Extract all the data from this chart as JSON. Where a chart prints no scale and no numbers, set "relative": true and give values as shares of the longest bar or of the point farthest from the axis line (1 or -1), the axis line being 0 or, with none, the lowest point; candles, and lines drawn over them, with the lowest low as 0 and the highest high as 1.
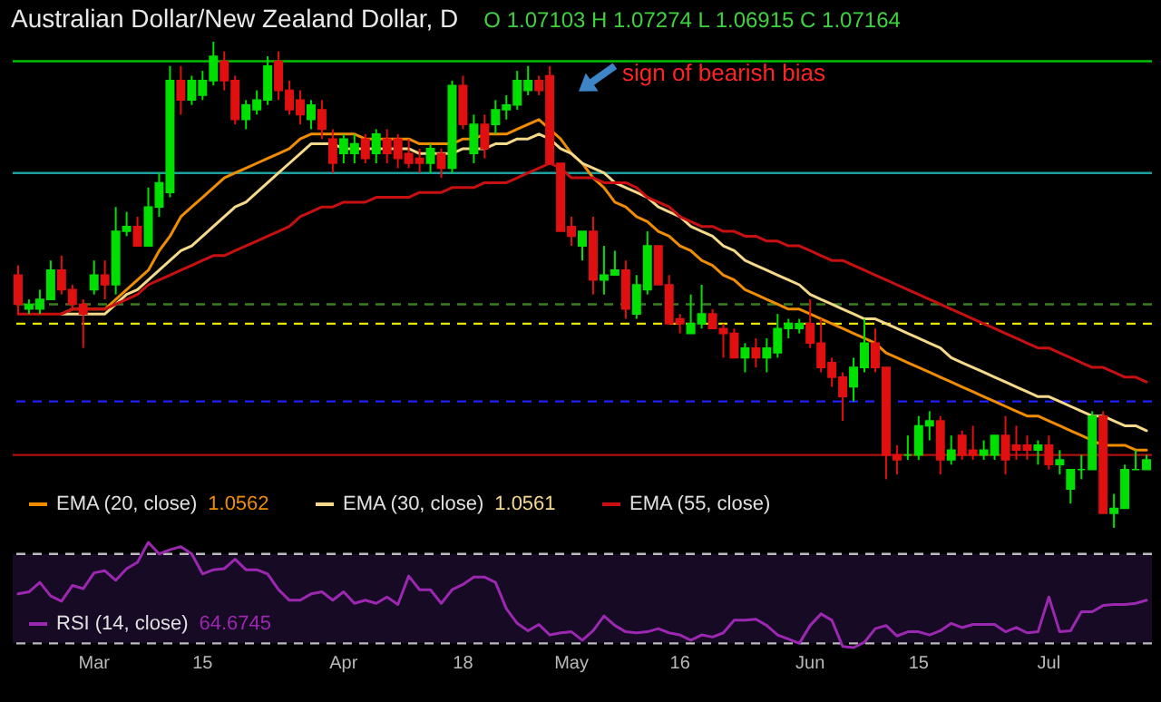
{
  "chart_data": [
    {
      "type": "candlestick",
      "title": "Australian Dollar/New Zealand Dollar, D",
      "subtitle": "O 1.07103 H 1.07274 L 1.06915 C 1.07164",
      "relative": true,
      "tick_labels": false,
      "legend": "bottom left",
      "categories": [
        null,
        null,
        null,
        null,
        null,
        null,
        null,
        null,
        null,
        null,
        null,
        null,
        null,
        null,
        null,
        null,
        null,
        null,
        null,
        null,
        null,
        null,
        null,
        null,
        null,
        null,
        null,
        null,
        null,
        null,
        null,
        null,
        null,
        null,
        null,
        null,
        null,
        null,
        null,
        null,
        null,
        null,
        null,
        null,
        null,
        null,
        null,
        null,
        null,
        null,
        null,
        null,
        null,
        null,
        null,
        null,
        null,
        null,
        null,
        null,
        null,
        null,
        null,
        null,
        null,
        null,
        null,
        null,
        null,
        null,
        null,
        null,
        null,
        null,
        null,
        null,
        null,
        null,
        null,
        null,
        null,
        null,
        null,
        null,
        null,
        null,
        null,
        null,
        null,
        null,
        null,
        null,
        null,
        null,
        null,
        null,
        null,
        null,
        null,
        null,
        null,
        null,
        null,
        null,
        null
      ],
      "series": [
        {
          "type": "line",
          "name": "EMA (20, close)",
          "color": "#f08c00",
          "values": [
            null,
            null,
            null,
            null,
            0.44,
            0.45,
            0.45,
            0.45,
            0.45,
            0.47,
            0.49,
            0.51,
            0.53,
            0.57,
            0.6,
            0.64,
            0.66,
            0.68,
            0.7,
            0.72,
            0.73,
            0.74,
            0.75,
            0.76,
            0.77,
            0.78,
            0.8,
            0.81,
            0.81,
            0.81,
            0.81,
            0.81,
            0.8,
            0.8,
            0.8,
            0.8,
            0.8,
            0.79,
            0.79,
            0.79,
            0.79,
            0.8,
            0.8,
            0.81,
            0.81,
            0.81,
            0.82,
            0.83,
            0.84,
            0.82,
            0.8,
            0.77,
            0.75,
            0.72,
            0.7,
            0.67,
            0.66,
            0.64,
            0.63,
            0.61,
            0.6,
            0.58,
            0.57,
            0.55,
            0.54,
            0.52,
            0.51,
            0.49,
            0.48,
            0.47,
            0.46,
            0.45,
            0.45,
            0.44,
            0.43,
            0.42,
            0.41,
            0.4,
            0.39,
            0.38,
            0.36,
            0.35,
            0.34,
            0.33,
            0.32,
            0.31,
            0.3,
            0.29,
            0.28,
            0.27,
            0.26,
            0.25,
            0.24,
            0.23,
            0.23,
            0.22,
            0.21,
            0.2,
            0.19,
            0.18,
            0.17,
            0.17,
            0.17,
            0.16,
            0.16
          ]
        },
        {
          "type": "line",
          "name": "EMA (30, close)",
          "color": "#f5d98b",
          "values": [
            null,
            null,
            null,
            null,
            0.44,
            0.44,
            0.44,
            0.44,
            0.44,
            0.46,
            0.48,
            0.49,
            0.51,
            0.53,
            0.55,
            0.57,
            0.58,
            0.6,
            0.62,
            0.64,
            0.66,
            0.67,
            0.69,
            0.71,
            0.73,
            0.75,
            0.77,
            0.79,
            0.79,
            0.79,
            0.78,
            0.78,
            0.78,
            0.78,
            0.78,
            0.78,
            0.78,
            0.77,
            0.77,
            0.77,
            0.77,
            0.78,
            0.78,
            0.78,
            0.79,
            0.79,
            0.8,
            0.8,
            0.81,
            0.8,
            0.78,
            0.77,
            0.75,
            0.74,
            0.73,
            0.71,
            0.7,
            0.69,
            0.68,
            0.66,
            0.65,
            0.64,
            0.62,
            0.61,
            0.6,
            0.58,
            0.57,
            0.55,
            0.54,
            0.53,
            0.52,
            0.51,
            0.5,
            0.48,
            0.47,
            0.46,
            0.45,
            0.44,
            0.43,
            0.43,
            0.42,
            0.41,
            0.4,
            0.39,
            0.38,
            0.37,
            0.35,
            0.34,
            0.33,
            0.32,
            0.31,
            0.3,
            0.29,
            0.28,
            0.27,
            0.27,
            0.26,
            0.25,
            0.24,
            0.23,
            0.23,
            0.22,
            0.21,
            0.21,
            0.2
          ]
        },
        {
          "type": "line",
          "name": "EMA (55, close)",
          "color": "#c81010",
          "values": [
            0.44,
            0.44,
            0.44,
            0.44,
            0.44,
            0.45,
            0.45,
            0.45,
            0.45,
            0.46,
            0.47,
            0.48,
            0.5,
            0.51,
            0.52,
            0.53,
            0.54,
            0.55,
            0.56,
            0.56,
            0.57,
            0.58,
            0.59,
            0.6,
            0.61,
            0.62,
            0.64,
            0.65,
            0.66,
            0.66,
            0.67,
            0.67,
            0.67,
            0.68,
            0.68,
            0.68,
            0.68,
            0.69,
            0.69,
            0.69,
            0.7,
            0.7,
            0.7,
            0.71,
            0.71,
            0.71,
            0.72,
            0.73,
            0.74,
            0.75,
            0.74,
            0.72,
            0.72,
            0.72,
            0.71,
            0.71,
            0.71,
            0.7,
            0.68,
            0.67,
            0.66,
            0.64,
            0.63,
            0.62,
            0.62,
            0.61,
            0.61,
            0.6,
            0.6,
            0.59,
            0.59,
            0.58,
            0.58,
            0.57,
            0.56,
            0.55,
            0.55,
            0.54,
            0.53,
            0.52,
            0.51,
            0.5,
            0.49,
            0.48,
            0.47,
            0.46,
            0.45,
            0.44,
            0.43,
            0.42,
            0.41,
            0.4,
            0.39,
            0.38,
            0.37,
            0.37,
            0.36,
            0.35,
            0.34,
            0.33,
            0.33,
            0.32,
            0.31,
            0.31,
            0.3
          ]
        },
        {
          "ohlc": [
            [
              0.52,
              0.54,
              0.44,
              0.46
            ],
            [
              0.45,
              0.47,
              0.44,
              0.46
            ],
            [
              0.45,
              0.49,
              0.44,
              0.47
            ],
            [
              0.47,
              0.55,
              0.47,
              0.53
            ],
            [
              0.53,
              0.56,
              0.48,
              0.49
            ],
            [
              0.49,
              0.5,
              0.45,
              0.46
            ],
            [
              0.46,
              0.47,
              0.37,
              0.44
            ],
            [
              0.49,
              0.55,
              0.48,
              0.52
            ],
            [
              0.52,
              0.55,
              0.47,
              0.5
            ],
            [
              0.5,
              0.66,
              0.48,
              0.61
            ],
            [
              0.61,
              0.65,
              0.6,
              0.62
            ],
            [
              0.62,
              0.64,
              0.58,
              0.58
            ],
            [
              0.58,
              0.7,
              0.58,
              0.66
            ],
            [
              0.66,
              0.73,
              0.64,
              0.71
            ],
            [
              0.69,
              0.95,
              0.68,
              0.92
            ],
            [
              0.92,
              0.95,
              0.85,
              0.88
            ],
            [
              0.88,
              0.93,
              0.87,
              0.92
            ],
            [
              0.89,
              0.94,
              0.88,
              0.92
            ],
            [
              0.92,
              1.0,
              0.91,
              0.97
            ],
            [
              0.96,
              0.98,
              0.9,
              0.92
            ],
            [
              0.92,
              0.93,
              0.83,
              0.84
            ],
            [
              0.84,
              0.88,
              0.82,
              0.87
            ],
            [
              0.86,
              0.9,
              0.85,
              0.88
            ],
            [
              0.88,
              0.97,
              0.87,
              0.95
            ],
            [
              0.96,
              0.98,
              0.88,
              0.9
            ],
            [
              0.9,
              0.92,
              0.85,
              0.86
            ],
            [
              0.88,
              0.9,
              0.83,
              0.85
            ],
            [
              0.84,
              0.88,
              0.82,
              0.87
            ],
            [
              0.86,
              0.88,
              0.8,
              0.82
            ],
            [
              0.8,
              0.82,
              0.73,
              0.75
            ],
            [
              0.77,
              0.81,
              0.75,
              0.8
            ],
            [
              0.77,
              0.81,
              0.75,
              0.79
            ],
            [
              0.8,
              0.81,
              0.75,
              0.76
            ],
            [
              0.77,
              0.82,
              0.75,
              0.81
            ],
            [
              0.8,
              0.82,
              0.75,
              0.77
            ],
            [
              0.8,
              0.81,
              0.74,
              0.76
            ],
            [
              0.77,
              0.8,
              0.74,
              0.75
            ],
            [
              0.76,
              0.78,
              0.73,
              0.75
            ],
            [
              0.75,
              0.79,
              0.73,
              0.78
            ],
            [
              0.77,
              0.78,
              0.72,
              0.74
            ],
            [
              0.74,
              0.92,
              0.73,
              0.91
            ],
            [
              0.91,
              0.93,
              0.82,
              0.83
            ],
            [
              0.77,
              0.85,
              0.75,
              0.83
            ],
            [
              0.83,
              0.85,
              0.76,
              0.78
            ],
            [
              0.83,
              0.88,
              0.81,
              0.86
            ],
            [
              0.86,
              0.89,
              0.84,
              0.87
            ],
            [
              0.87,
              0.94,
              0.86,
              0.92
            ],
            [
              0.9,
              0.95,
              0.89,
              0.92
            ],
            [
              0.92,
              0.93,
              0.89,
              0.9
            ],
            [
              0.93,
              0.95,
              0.75,
              0.75
            ],
            [
              0.75,
              0.75,
              0.61,
              0.61
            ],
            [
              0.62,
              0.64,
              0.58,
              0.6
            ],
            [
              0.58,
              0.61,
              0.55,
              0.61
            ],
            [
              0.61,
              0.64,
              0.48,
              0.51
            ],
            [
              0.51,
              0.58,
              0.48,
              0.52
            ],
            [
              0.52,
              0.57,
              0.52,
              0.53
            ],
            [
              0.53,
              0.55,
              0.43,
              0.45
            ],
            [
              0.44,
              0.52,
              0.43,
              0.5
            ],
            [
              0.49,
              0.61,
              0.48,
              0.58
            ],
            [
              0.58,
              0.58,
              0.5,
              0.5
            ],
            [
              0.5,
              0.52,
              0.42,
              0.42
            ],
            [
              0.43,
              0.44,
              0.4,
              0.42
            ],
            [
              0.4,
              0.48,
              0.4,
              0.42
            ],
            [
              0.42,
              0.5,
              0.41,
              0.44
            ],
            [
              0.44,
              0.45,
              0.41,
              0.41
            ],
            [
              0.41,
              0.42,
              0.35,
              0.4
            ],
            [
              0.4,
              0.41,
              0.35,
              0.35
            ],
            [
              0.35,
              0.38,
              0.32,
              0.37
            ],
            [
              0.37,
              0.39,
              0.33,
              0.35
            ],
            [
              0.35,
              0.39,
              0.32,
              0.37
            ],
            [
              0.36,
              0.44,
              0.35,
              0.41
            ],
            [
              0.41,
              0.43,
              0.39,
              0.42
            ],
            [
              0.41,
              0.43,
              0.4,
              0.42
            ],
            [
              0.42,
              0.47,
              0.37,
              0.38
            ],
            [
              0.38,
              0.43,
              0.32,
              0.33
            ],
            [
              0.34,
              0.35,
              0.29,
              0.31
            ],
            [
              0.31,
              0.32,
              0.22,
              0.27
            ],
            [
              0.29,
              0.35,
              0.26,
              0.33
            ],
            [
              0.33,
              0.43,
              0.32,
              0.38
            ],
            [
              0.38,
              0.41,
              0.32,
              0.33
            ],
            [
              0.33,
              0.33,
              0.1,
              0.15
            ],
            [
              0.15,
              0.17,
              0.11,
              0.14
            ],
            [
              0.15,
              0.19,
              0.14,
              0.15
            ],
            [
              0.15,
              0.23,
              0.14,
              0.21
            ],
            [
              0.21,
              0.24,
              0.18,
              0.22
            ],
            [
              0.22,
              0.23,
              0.11,
              0.14
            ],
            [
              0.14,
              0.19,
              0.13,
              0.16
            ],
            [
              0.19,
              0.2,
              0.14,
              0.15
            ],
            [
              0.16,
              0.21,
              0.14,
              0.15
            ],
            [
              0.15,
              0.18,
              0.14,
              0.16
            ],
            [
              0.15,
              0.19,
              0.14,
              0.19
            ],
            [
              0.19,
              0.23,
              0.11,
              0.14
            ],
            [
              0.17,
              0.21,
              0.14,
              0.16
            ],
            [
              0.17,
              0.19,
              0.14,
              0.16
            ],
            [
              0.16,
              0.18,
              0.13,
              0.17
            ],
            [
              0.17,
              0.19,
              0.12,
              0.13
            ],
            [
              0.13,
              0.16,
              0.11,
              0.14
            ],
            [
              0.08,
              0.12,
              0.05,
              0.12
            ],
            [
              0.12,
              0.15,
              0.1,
              0.12
            ],
            [
              0.12,
              0.24,
              0.12,
              0.23
            ],
            [
              0.23,
              0.24,
              0.03,
              0.03
            ],
            [
              0.03,
              0.07,
              0,
              0.04
            ],
            [
              0.04,
              0.13,
              0.04,
              0.12
            ],
            [
              0.12,
              0.16,
              0.12,
              0.12
            ],
            [
              0.12,
              0.15,
              0.12,
              0.14
            ]
          ],
          "colors": [
            "#e01010",
            "#00e000",
            "#00e000",
            "#00e000",
            "#e01010",
            "#e01010",
            "#e01010",
            "#00e000",
            "#e01010",
            "#00e000",
            "#00e000",
            "#e01010",
            "#00e000",
            "#00e000",
            "#00e000",
            "#e01010",
            "#00e000",
            "#00e000",
            "#00e000",
            "#e01010",
            "#e01010",
            "#00e000",
            "#00e000",
            "#00e000",
            "#e01010",
            "#e01010",
            "#e01010",
            "#00e000",
            "#e01010",
            "#e01010",
            "#00e000",
            "#00e000",
            "#e01010",
            "#00e000",
            "#e01010",
            "#e01010",
            "#e01010",
            "#e01010",
            "#00e000",
            "#e01010",
            "#00e000",
            "#e01010",
            "#00e000",
            "#e01010",
            "#00e000",
            "#00e000",
            "#00e000",
            "#00e000",
            "#e01010",
            "#e01010",
            "#e01010",
            "#e01010",
            "#00e000",
            "#e01010",
            "#00e000",
            "#00e000",
            "#e01010",
            "#00e000",
            "#00e000",
            "#e01010",
            "#e01010",
            "#e01010",
            "#00e000",
            "#00e000",
            "#e01010",
            "#e01010",
            "#e01010",
            "#00e000",
            "#e01010",
            "#00e000",
            "#00e000",
            "#00e000",
            "#00e000",
            "#e01010",
            "#e01010",
            "#e01010",
            "#e01010",
            "#00e000",
            "#00e000",
            "#e01010",
            "#e01010",
            "#e01010",
            "#00e000",
            "#00e000",
            "#00e000",
            "#e01010",
            "#00e000",
            "#e01010",
            "#e01010",
            "#00e000",
            "#00e000",
            "#e01010",
            "#e01010",
            "#e01010",
            "#00e000",
            "#e01010",
            "#00e000",
            "#00e000",
            "#00e000",
            "#00e000",
            "#e01010",
            "#00e000",
            "#00e000",
            "#00e000",
            "#00e000"
          ]
        }
      ],
      "ref_lines": [
        {
          "axis": "y",
          "value": 0.96,
          "color": "#00c000",
          "line_style": "solid"
        },
        {
          "axis": "y",
          "value": 0.73,
          "color": "#1f9e9e",
          "line_style": "solid"
        },
        {
          "axis": "y",
          "value": 0.46,
          "color": "#3a7d1e",
          "line_style": "dashed"
        },
        {
          "axis": "y",
          "value": 0.42,
          "color": "#e6e600",
          "line_style": "dashed"
        },
        {
          "axis": "y",
          "value": 0.26,
          "color": "#2020ff",
          "line_style": "dashed"
        },
        {
          "axis": "y",
          "value": 0.15,
          "color": "#b01010",
          "line_style": "solid"
        }
      ],
      "annotations": [
        {
          "text": "sign of bearish bias",
          "y": 0.95
        },
        "1.0562",
        "1.0561"
      ]
    },
    {
      "type": "line",
      "relative": true,
      "tick_labels": "x",
      "legend": "bottom left",
      "categories": [
        null,
        null,
        null,
        null,
        null,
        null,
        null,
        "Mar",
        null,
        null,
        null,
        null,
        null,
        null,
        null,
        null,
        null,
        "15",
        null,
        null,
        null,
        null,
        null,
        null,
        null,
        null,
        null,
        null,
        null,
        null,
        "Apr",
        null,
        null,
        null,
        null,
        null,
        null,
        null,
        null,
        null,
        null,
        "18",
        null,
        null,
        null,
        null,
        null,
        null,
        null,
        null,
        null,
        "May",
        null,
        null,
        null,
        null,
        null,
        null,
        null,
        null,
        null,
        "16",
        null,
        null,
        null,
        null,
        null,
        null,
        null,
        null,
        null,
        null,
        null,
        "Jun",
        null,
        null,
        null,
        null,
        null,
        null,
        null,
        null,
        null,
        "15",
        null,
        null,
        null,
        null,
        null,
        null,
        null,
        null,
        null,
        null,
        null,
        "Jul",
        null,
        null,
        null,
        null,
        null,
        null,
        null,
        null,
        null
      ],
      "series": [
        {
          "name": "RSI (14, close)",
          "color": "#9c27b0",
          "values": [
            0.51,
            0.53,
            0.62,
            0.49,
            0.44,
            0.59,
            0.56,
            0.71,
            0.73,
            0.64,
            0.75,
            0.81,
            1.0,
            0.89,
            0.93,
            0.96,
            0.89,
            0.7,
            0.74,
            0.75,
            0.84,
            0.74,
            0.74,
            0.7,
            0.55,
            0.45,
            0.45,
            0.51,
            0.53,
            0.45,
            0.53,
            0.42,
            0.45,
            0.42,
            0.48,
            0.41,
            0.68,
            0.55,
            0.55,
            0.42,
            0.55,
            0.6,
            0.67,
            0.67,
            0.62,
            0.37,
            0.23,
            0.16,
            0.22,
            0.12,
            0.14,
            0.15,
            0.07,
            0.16,
            0.3,
            0.21,
            0.15,
            0.14,
            0.15,
            0.18,
            0.14,
            0.12,
            0.07,
            0.12,
            0.1,
            0.14,
            0.26,
            0.26,
            0.27,
            0.21,
            0.12,
            0.08,
            0.04,
            0.21,
            0.32,
            0.26,
            0.01,
            0,
            0.05,
            0.18,
            0.21,
            0.11,
            0.15,
            0.15,
            0.12,
            0.16,
            0.23,
            0.19,
            0.22,
            0.22,
            0.22,
            0.15,
            0.19,
            0.14,
            0.15,
            0.48,
            0.15,
            0.16,
            0.34,
            0.34,
            0.4,
            0.41,
            0.41,
            0.42,
            0.45
          ]
        }
      ],
      "ref_lines": [
        {
          "axis": "y",
          "value": 0.89,
          "color": "#bbbbbb",
          "line_style": "dashed"
        },
        {
          "axis": "y",
          "value": 0.04,
          "color": "#bbbbbb",
          "line_style": "dashed"
        }
      ],
      "bands": [
        {
          "axis": "y",
          "from": 0.04,
          "to": 0.89,
          "color": "#170a24"
        }
      ],
      "annotations": [
        "64.6745"
      ]
    }
  ]
}
